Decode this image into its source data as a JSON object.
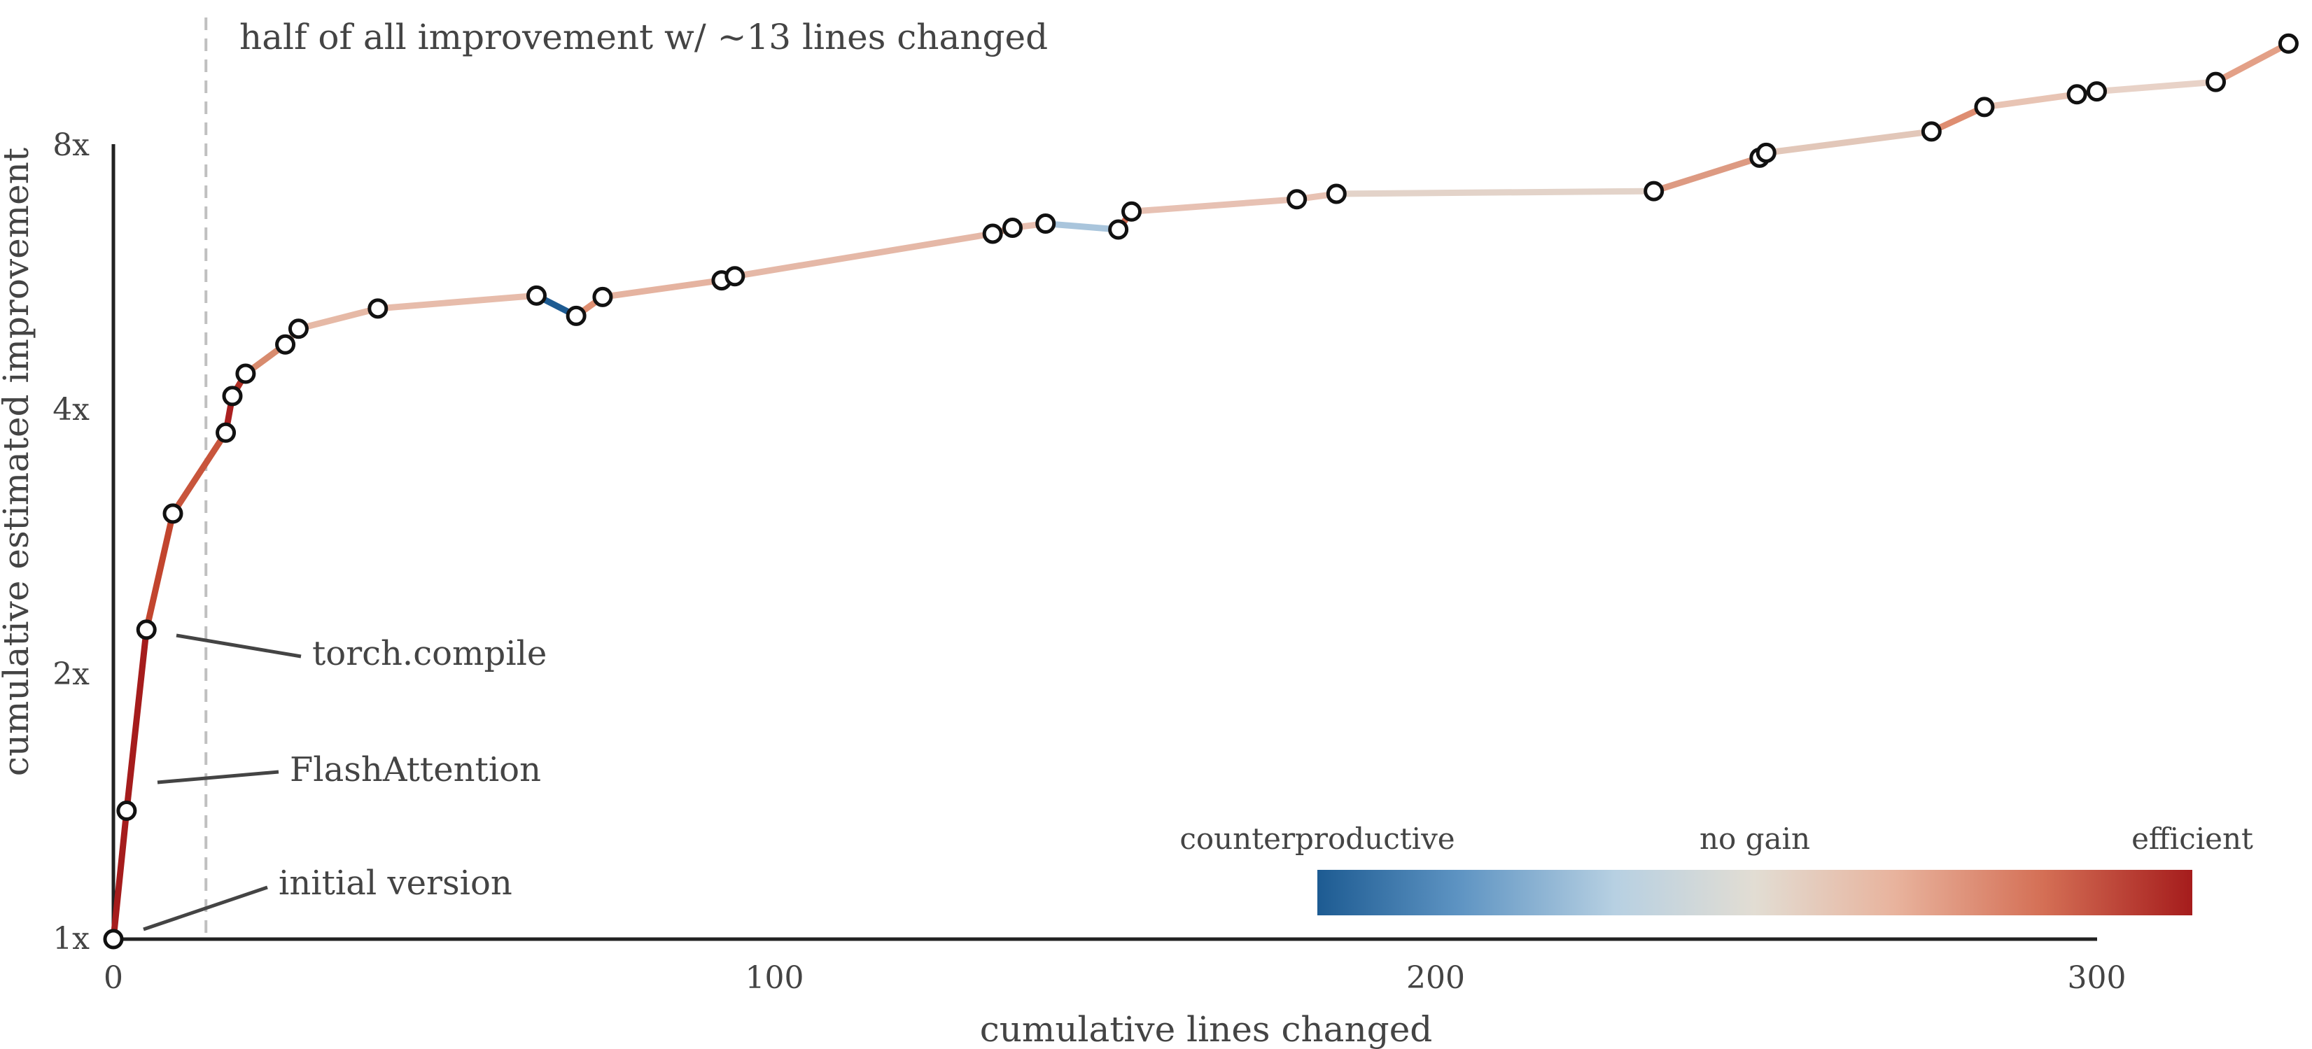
{
  "chart_data": {
    "type": "line",
    "xlabel": "cumulative lines changed",
    "ylabel": "cumulative estimated improvement",
    "xlim": [
      0,
      330
    ],
    "ylim": [
      1,
      13.4
    ],
    "yscale": "log2",
    "x_ticks": [
      0,
      100,
      200,
      300
    ],
    "x_tick_labels": [
      "0",
      "100",
      "200",
      "300"
    ],
    "y_ticks": [
      1,
      2,
      4,
      8
    ],
    "y_tick_labels": [
      "1x",
      "2x",
      "4x",
      "8x"
    ],
    "grid": false,
    "vline": {
      "x": 14,
      "label": "half of all improvement w/ ~13 lines changed"
    },
    "series": [
      {
        "points": [
          {
            "x": 0,
            "y": 1.0
          },
          {
            "x": 2,
            "y": 1.4
          },
          {
            "x": 5,
            "y": 2.25
          },
          {
            "x": 9,
            "y": 3.05
          },
          {
            "x": 17,
            "y": 3.77
          },
          {
            "x": 18,
            "y": 4.15
          },
          {
            "x": 20,
            "y": 4.4
          },
          {
            "x": 26,
            "y": 4.75
          },
          {
            "x": 28,
            "y": 4.95
          },
          {
            "x": 40,
            "y": 5.22
          },
          {
            "x": 64,
            "y": 5.4
          },
          {
            "x": 70,
            "y": 5.12
          },
          {
            "x": 74,
            "y": 5.38
          },
          {
            "x": 92,
            "y": 5.62
          },
          {
            "x": 94,
            "y": 5.68
          },
          {
            "x": 133,
            "y": 6.35
          },
          {
            "x": 136,
            "y": 6.45
          },
          {
            "x": 141,
            "y": 6.52
          },
          {
            "x": 152,
            "y": 6.42
          },
          {
            "x": 154,
            "y": 6.73
          },
          {
            "x": 179,
            "y": 6.95
          },
          {
            "x": 185,
            "y": 7.05
          },
          {
            "x": 233,
            "y": 7.1
          },
          {
            "x": 249,
            "y": 7.75
          },
          {
            "x": 250,
            "y": 7.85
          },
          {
            "x": 275,
            "y": 8.3
          },
          {
            "x": 283,
            "y": 8.85
          },
          {
            "x": 297,
            "y": 9.15
          },
          {
            "x": 300,
            "y": 9.22
          },
          {
            "x": 318,
            "y": 9.45
          },
          {
            "x": 329,
            "y": 10.45
          }
        ],
        "segment_colors": [
          "#a51c1c",
          "#a51c1c",
          "#c2452e",
          "#c8553c",
          "#ab2020",
          "#b02e24",
          "#d88b6e",
          "#e6b39f",
          "#e6b9a6",
          "#e7bcab",
          "#1d5b92",
          "#df8f72",
          "#e5b3a0",
          "#e3ab95",
          "#e5b8a7",
          "#df9d84",
          "#e8bfb0",
          "#a9c5dc",
          "#d16a52",
          "#e7c1b3",
          "#e8c2b3",
          "#e3d3c9",
          "#dd9a82",
          "#e9c2b2",
          "#e2c7b9",
          "#de8d71",
          "#e8c4b4",
          "#e8c2b3",
          "#e8d2c7",
          "#e3a087"
        ]
      }
    ],
    "annotations": [
      {
        "text": "torch.compile",
        "x": 5,
        "y": 2.25
      },
      {
        "text": "FlashAttention",
        "x": 2,
        "y": 1.4
      },
      {
        "text": "initial version",
        "x": 0,
        "y": 1.0
      }
    ],
    "colorbar": {
      "labels": [
        "counterproductive",
        "no gain",
        "efficient"
      ],
      "colors": [
        "#1d5b92",
        "#5d93c2",
        "#b7d0e2",
        "#e2ddd3",
        "#e8b39d",
        "#d46f55",
        "#a51c1c"
      ]
    }
  }
}
